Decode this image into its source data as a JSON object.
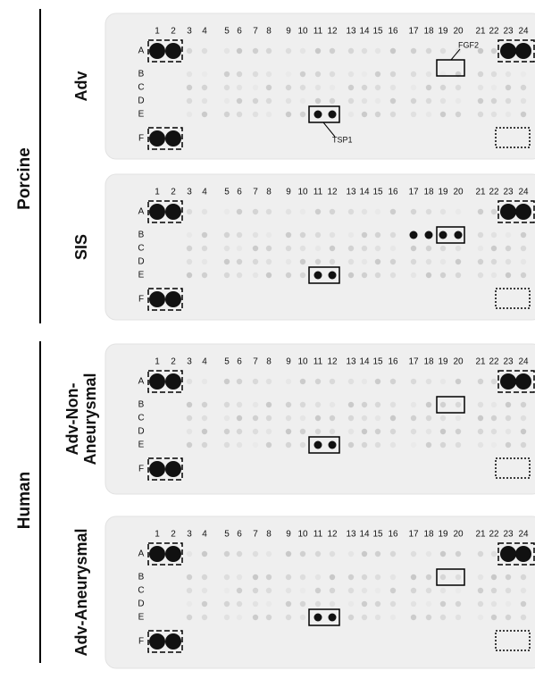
{
  "groups": [
    "Porcine",
    "Human"
  ],
  "panels": [
    {
      "label": [
        "Adv"
      ],
      "columns": [
        1,
        2,
        3,
        4,
        5,
        6,
        7,
        8,
        9,
        10,
        11,
        12,
        13,
        14,
        15,
        16,
        17,
        18,
        19,
        20,
        21,
        22,
        23,
        24
      ],
      "rows": [
        "A",
        "B",
        "C",
        "D",
        "E",
        "F"
      ],
      "callouts": [
        "FGF2",
        "TSP1"
      ]
    },
    {
      "label": [
        "SIS"
      ],
      "columns": [
        1,
        2,
        3,
        4,
        5,
        6,
        7,
        8,
        9,
        10,
        11,
        12,
        13,
        14,
        15,
        16,
        17,
        18,
        19,
        20,
        21,
        22,
        23,
        24
      ],
      "rows": [
        "A",
        "B",
        "C",
        "D",
        "E",
        "F"
      ]
    },
    {
      "label": [
        "Adv-Non-",
        "Aneurysmal"
      ],
      "columns": [
        1,
        2,
        3,
        4,
        5,
        6,
        7,
        8,
        9,
        10,
        11,
        12,
        13,
        14,
        15,
        16,
        17,
        18,
        19,
        20,
        21,
        22,
        23,
        24
      ],
      "rows": [
        "A",
        "B",
        "C",
        "D",
        "E",
        "F"
      ]
    },
    {
      "label": [
        "Adv-Aneurysmal"
      ],
      "columns": [
        1,
        2,
        3,
        4,
        5,
        6,
        7,
        8,
        9,
        10,
        11,
        12,
        13,
        14,
        15,
        16,
        17,
        18,
        19,
        20,
        21,
        22,
        23,
        24
      ],
      "rows": [
        "A",
        "B",
        "C",
        "D",
        "E",
        "F"
      ]
    }
  ]
}
